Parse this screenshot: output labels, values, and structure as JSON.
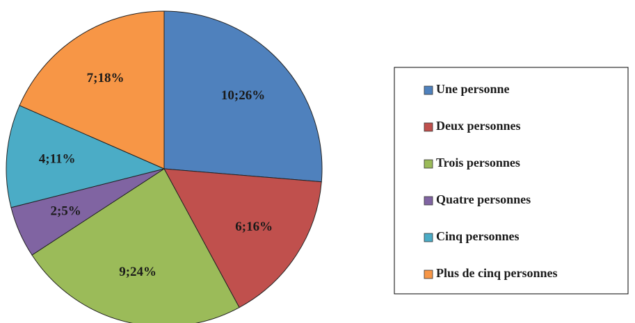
{
  "chart_data": {
    "type": "pie",
    "categories": [
      "Une personne",
      "Deux personnes",
      "Trois personnes",
      "Quatre personnes",
      "Cinq personnes",
      "Plus de cinq personnes"
    ],
    "values": [
      10,
      6,
      9,
      2,
      4,
      7
    ],
    "value_labels": [
      "10;26%",
      "6;16%",
      "9;24%",
      "2;5%",
      "4;11%",
      "7;18%"
    ],
    "colors": [
      "#4f81bd",
      "#c0504d",
      "#9bbb59",
      "#8064a2",
      "#4bacc6",
      "#f79646"
    ],
    "legend": "right"
  }
}
